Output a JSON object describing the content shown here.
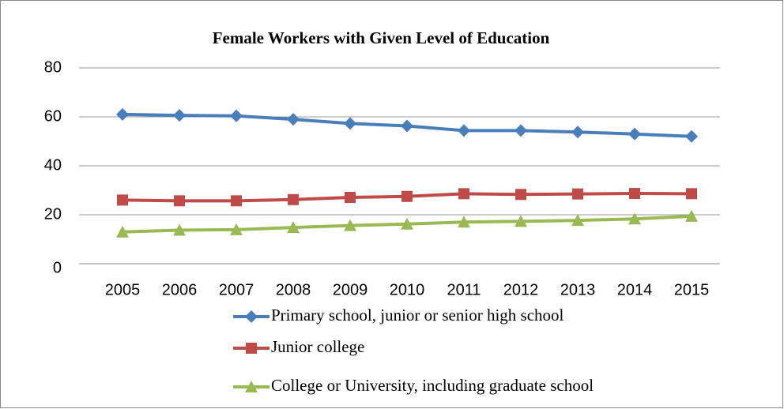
{
  "chart_data": {
    "type": "line",
    "title": "Female Workers with Given Level of Education",
    "categories": [
      "2005",
      "2006",
      "2007",
      "2008",
      "2009",
      "2010",
      "2011",
      "2012",
      "2013",
      "2014",
      "2015"
    ],
    "series": [
      {
        "name": "Primary school, junior or senior high school",
        "color": "#4a7ebb",
        "marker": "diamond",
        "values": [
          61,
          60.6,
          60.4,
          59,
          57.3,
          56.3,
          54.4,
          54.4,
          53.8,
          53,
          52
        ]
      },
      {
        "name": "Junior college",
        "color": "#be4b48",
        "marker": "square",
        "values": [
          26,
          25.7,
          25.7,
          26.2,
          27.1,
          27.5,
          28.6,
          28.3,
          28.5,
          28.7,
          28.6
        ]
      },
      {
        "name": "College or University, including graduate school",
        "color": "#98b954",
        "marker": "triangle",
        "values": [
          13,
          13.7,
          13.9,
          14.8,
          15.6,
          16.2,
          17,
          17.3,
          17.7,
          18.3,
          19.4
        ]
      }
    ],
    "ylim": [
      0,
      80
    ],
    "yticks": [
      0,
      20,
      40,
      60,
      80
    ],
    "grid": true,
    "legend": "bottom"
  }
}
